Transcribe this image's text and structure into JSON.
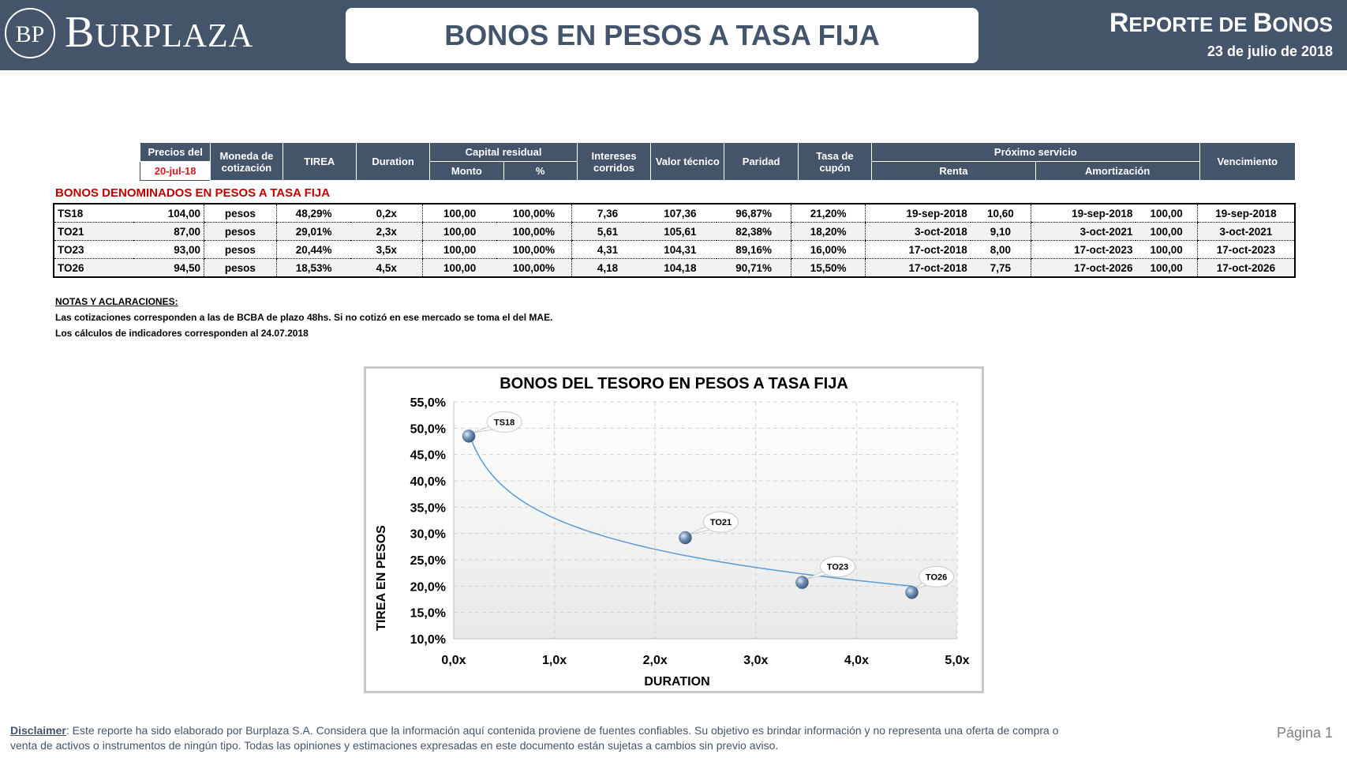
{
  "header": {
    "logo_initials": "BP",
    "brand_first": "B",
    "brand_rest": "URPLAZA",
    "title": "BONOS EN PESOS A TASA FIJA",
    "report_title_1": "R",
    "report_title_2": "EPORTE DE ",
    "report_title_3": "B",
    "report_title_4": "ONOS",
    "report_date": "23 de julio de 2018"
  },
  "table": {
    "precios_del": "Precios del",
    "precios_fecha": "20-jul-18",
    "moneda_1": "Moneda de",
    "moneda_2": "cotización",
    "tirea": "TIREA",
    "duration": "Duration",
    "capital_residual": "Capital residual",
    "monto": "Monto",
    "pct": "%",
    "intereses_1": "Intereses",
    "intereses_2": "corridos",
    "valor_tecnico": "Valor técnico",
    "paridad": "Paridad",
    "tasa_1": "Tasa de",
    "tasa_2": "cupón",
    "proximo_servicio": "Próximo servicio",
    "renta": "Renta",
    "amortizacion": "Amortización",
    "vencimiento": "Vencimiento",
    "section_title": "BONOS DENOMINADOS EN PESOS A TASA FIJA",
    "rows": [
      {
        "ticker": "TS18",
        "precio": "104,00",
        "moneda": "pesos",
        "tirea": "48,29%",
        "duration": "0,2x",
        "monto": "100,00",
        "pct": "100,00%",
        "intereses": "7,36",
        "valor": "107,36",
        "paridad": "96,87%",
        "tasa": "21,20%",
        "renta_fecha": "19-sep-2018",
        "renta_valor": "10,60",
        "amort_fecha": "19-sep-2018",
        "amort_valor": "100,00",
        "vencimiento": "19-sep-2018"
      },
      {
        "ticker": "TO21",
        "precio": "87,00",
        "moneda": "pesos",
        "tirea": "29,01%",
        "duration": "2,3x",
        "monto": "100,00",
        "pct": "100,00%",
        "intereses": "5,61",
        "valor": "105,61",
        "paridad": "82,38%",
        "tasa": "18,20%",
        "renta_fecha": "3-oct-2018",
        "renta_valor": "9,10",
        "amort_fecha": "3-oct-2021",
        "amort_valor": "100,00",
        "vencimiento": "3-oct-2021"
      },
      {
        "ticker": "TO23",
        "precio": "93,00",
        "moneda": "pesos",
        "tirea": "20,44%",
        "duration": "3,5x",
        "monto": "100,00",
        "pct": "100,00%",
        "intereses": "4,31",
        "valor": "104,31",
        "paridad": "89,16%",
        "tasa": "16,00%",
        "renta_fecha": "17-oct-2018",
        "renta_valor": "8,00",
        "amort_fecha": "17-oct-2023",
        "amort_valor": "100,00",
        "vencimiento": "17-oct-2023"
      },
      {
        "ticker": "TO26",
        "precio": "94,50",
        "moneda": "pesos",
        "tirea": "18,53%",
        "duration": "4,5x",
        "monto": "100,00",
        "pct": "100,00%",
        "intereses": "4,18",
        "valor": "104,18",
        "paridad": "90,71%",
        "tasa": "15,50%",
        "renta_fecha": "17-oct-2018",
        "renta_valor": "7,75",
        "amort_fecha": "17-oct-2026",
        "amort_valor": "100,00",
        "vencimiento": "17-oct-2026"
      }
    ]
  },
  "notes": {
    "heading": "NOTAS Y ACLARACIONES:",
    "line1": "Las cotizaciones corresponden a las de BCBA de plazo 48hs. Si no cotizó en ese mercado se toma el del MAE.",
    "line2": "Los cálculos de indicadores corresponden al 24.07.2018"
  },
  "chart_data": {
    "type": "scatter",
    "title": "BONOS DEL TESORO EN PESOS A TASA FIJA",
    "xlabel": "DURATION",
    "ylabel": "TIREA EN PESOS",
    "xlim": [
      0,
      5
    ],
    "ylim": [
      10,
      55
    ],
    "x_ticks": [
      "0,0x",
      "1,0x",
      "2,0x",
      "3,0x",
      "4,0x",
      "5,0x"
    ],
    "y_ticks": [
      "10,0%",
      "15,0%",
      "20,0%",
      "25,0%",
      "30,0%",
      "35,0%",
      "40,0%",
      "45,0%",
      "50,0%",
      "55,0%"
    ],
    "grid": true,
    "trendline": "logarithmic",
    "points": [
      {
        "label": "TS18",
        "x": 0.15,
        "y": 48.5
      },
      {
        "label": "TO21",
        "x": 2.3,
        "y": 29.2
      },
      {
        "label": "TO23",
        "x": 3.46,
        "y": 20.7
      },
      {
        "label": "TO26",
        "x": 4.55,
        "y": 18.8
      }
    ],
    "colors": {
      "point": "#5b7fa8",
      "line": "#5b9bd5"
    }
  },
  "footer": {
    "disclaimer_label": "Disclaimer",
    "disclaimer_text": ": Este reporte ha sido elaborado por Burplaza S.A. Considera que la información aquí contenida proviene de fuentes confiables. Su objetivo es brindar información y no representa una oferta de compra o venta de activos o instrumentos de ningún tipo. Todas las opiniones y estimaciones expresadas en este documento están sujetas a cambios sin previo aviso.",
    "page": "Página 1"
  }
}
